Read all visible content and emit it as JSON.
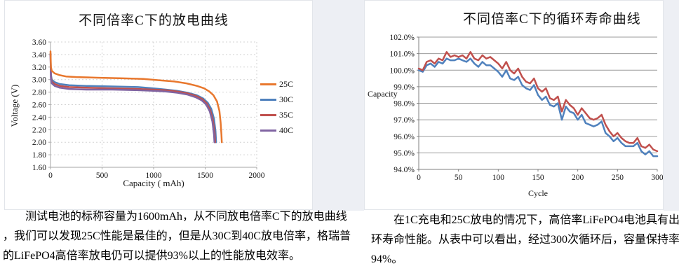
{
  "page": {
    "background": "#ffffff",
    "gutter_color": "#edeff4"
  },
  "left_text": {
    "lines": [
      "测试电池的标称容量为1600mAh，从不同放电倍率C下的放电曲线",
      "，我们可以发现25C性能是最佳的，但是从30C到40C放电倍率，格瑞普",
      "的LiFePO4高倍率放电仍可以提供93%以上的性能放电效率。"
    ]
  },
  "right_text": {
    "lines": [
      "在1C充电和25C放电的情况下，高倍率LiFePO4电池具有出色的循",
      "环寿命性能。从表中可以看出，经过300次循环后，容量保持率超过",
      "94%。"
    ]
  },
  "chart_data": [
    {
      "type": "line",
      "title": "不同倍率C下的放电曲线",
      "xlabel": "Capacity ( mAh)",
      "ylabel": "Voltage (V)",
      "xlim": [
        0,
        2000
      ],
      "ylim": [
        1.6,
        3.6
      ],
      "x_ticks": [
        0,
        500,
        1000,
        1500,
        2000
      ],
      "x_tick_labels": [
        "0",
        "500",
        "1000",
        "1500",
        "2000"
      ],
      "y_ticks": [
        1.6,
        1.8,
        2.0,
        2.2,
        2.4,
        2.6,
        2.8,
        3.0,
        3.2,
        3.4,
        3.6
      ],
      "y_tick_labels": [
        "1.60",
        "1.80",
        "2.00",
        "2.20",
        "2.40",
        "2.60",
        "2.80",
        "3.00",
        "3.20",
        "3.40",
        "3.60"
      ],
      "grid": "dashed",
      "grid_color": "#d3d3d3",
      "axis_color": "#a6a6a6",
      "legend_position": "right",
      "series": [
        {
          "name": "30C",
          "color": "#4F81BD",
          "points": [
            [
              0,
              3.42
            ],
            [
              4,
              3.08
            ],
            [
              12,
              3.0
            ],
            [
              40,
              2.96
            ],
            [
              90,
              2.93
            ],
            [
              180,
              2.91
            ],
            [
              350,
              2.9
            ],
            [
              600,
              2.89
            ],
            [
              850,
              2.88
            ],
            [
              1000,
              2.86
            ],
            [
              1120,
              2.84
            ],
            [
              1230,
              2.82
            ],
            [
              1330,
              2.79
            ],
            [
              1420,
              2.75
            ],
            [
              1480,
              2.7
            ],
            [
              1525,
              2.63
            ],
            [
              1560,
              2.53
            ],
            [
              1585,
              2.38
            ],
            [
              1600,
              2.18
            ],
            [
              1606,
              2.0
            ]
          ]
        },
        {
          "name": "35C",
          "color": "#C0504D",
          "points": [
            [
              0,
              3.41
            ],
            [
              4,
              3.04
            ],
            [
              12,
              2.97
            ],
            [
              40,
              2.93
            ],
            [
              90,
              2.9
            ],
            [
              180,
              2.88
            ],
            [
              350,
              2.87
            ],
            [
              600,
              2.86
            ],
            [
              850,
              2.85
            ],
            [
              1000,
              2.84
            ],
            [
              1120,
              2.83
            ],
            [
              1230,
              2.81
            ],
            [
              1330,
              2.78
            ],
            [
              1410,
              2.74
            ],
            [
              1470,
              2.69
            ],
            [
              1515,
              2.62
            ],
            [
              1550,
              2.51
            ],
            [
              1575,
              2.36
            ],
            [
              1592,
              2.15
            ],
            [
              1597,
              2.0
            ]
          ]
        },
        {
          "name": "40C",
          "color": "#8064A2",
          "points": [
            [
              0,
              3.4
            ],
            [
              4,
              3.01
            ],
            [
              12,
              2.94
            ],
            [
              40,
              2.9
            ],
            [
              90,
              2.87
            ],
            [
              180,
              2.85
            ],
            [
              350,
              2.84
            ],
            [
              600,
              2.84
            ],
            [
              850,
              2.83
            ],
            [
              1000,
              2.82
            ],
            [
              1120,
              2.81
            ],
            [
              1230,
              2.79
            ],
            [
              1330,
              2.76
            ],
            [
              1405,
              2.72
            ],
            [
              1465,
              2.67
            ],
            [
              1510,
              2.6
            ],
            [
              1545,
              2.49
            ],
            [
              1570,
              2.33
            ],
            [
              1586,
              2.12
            ],
            [
              1590,
              2.0
            ]
          ]
        },
        {
          "name": "25C",
          "color": "#E8772D",
          "points": [
            [
              0,
              3.45
            ],
            [
              4,
              3.2
            ],
            [
              12,
              3.14
            ],
            [
              40,
              3.1
            ],
            [
              90,
              3.07
            ],
            [
              150,
              3.05
            ],
            [
              250,
              3.04
            ],
            [
              450,
              3.03
            ],
            [
              700,
              3.02
            ],
            [
              900,
              3.01
            ],
            [
              1050,
              2.99
            ],
            [
              1200,
              2.97
            ],
            [
              1320,
              2.94
            ],
            [
              1420,
              2.9
            ],
            [
              1490,
              2.86
            ],
            [
              1540,
              2.81
            ],
            [
              1580,
              2.75
            ],
            [
              1615,
              2.65
            ],
            [
              1638,
              2.5
            ],
            [
              1650,
              2.32
            ],
            [
              1658,
              2.12
            ],
            [
              1661,
              2.0
            ]
          ]
        }
      ],
      "legend_order": [
        "25C",
        "30C",
        "35C",
        "40C"
      ]
    },
    {
      "type": "line",
      "title": "不同倍率C下的循环寿命曲线",
      "xlabel": "Cycle",
      "ylabel": "Capacity",
      "xlim": [
        0,
        300
      ],
      "ylim": [
        94,
        102
      ],
      "x_ticks": [
        0,
        50,
        100,
        150,
        200,
        250,
        300
      ],
      "x_tick_labels": [
        "0",
        "50",
        "100",
        "150",
        "200",
        "250",
        "300"
      ],
      "y_ticks": [
        94,
        95,
        96,
        97,
        98,
        99,
        100,
        101,
        102
      ],
      "y_tick_labels": [
        "94.0%",
        "95.0%",
        "96.0%",
        "97.0%",
        "98.0%",
        "99.0%",
        "100.0%",
        "101.0%",
        "102.0%"
      ],
      "grid": "solid",
      "grid_color": "#9b9b9b",
      "axis_color": "#7f7f7f",
      "legend_position": "none",
      "x_start": 0,
      "x_step": 5,
      "series": [
        {
          "name": "blue",
          "color": "#4F81BD",
          "values": [
            100.0,
            99.9,
            100.3,
            100.4,
            100.2,
            100.5,
            100.4,
            100.7,
            100.6,
            100.6,
            100.7,
            100.6,
            100.5,
            100.7,
            100.4,
            100.2,
            100.5,
            100.3,
            100.3,
            100.1,
            99.9,
            99.6,
            100.0,
            99.5,
            99.4,
            99.6,
            99.1,
            98.9,
            98.8,
            99.1,
            98.5,
            98.2,
            98.4,
            97.9,
            97.8,
            98.0,
            97.0,
            97.8,
            97.5,
            97.4,
            97.0,
            97.3,
            96.8,
            96.7,
            96.6,
            96.7,
            96.9,
            96.2,
            96.0,
            95.7,
            95.9,
            95.6,
            95.4,
            95.4,
            95.4,
            95.6,
            95.1,
            94.9,
            95.1,
            94.8,
            94.8
          ]
        },
        {
          "name": "red",
          "color": "#C0504D",
          "values": [
            100.1,
            100.0,
            100.5,
            100.6,
            100.4,
            100.7,
            100.6,
            101.1,
            100.8,
            100.9,
            100.8,
            100.9,
            100.7,
            101.1,
            100.7,
            100.6,
            100.9,
            100.7,
            100.8,
            100.6,
            100.4,
            100.1,
            100.5,
            100.0,
            99.8,
            100.1,
            99.6,
            99.3,
            99.2,
            99.5,
            98.9,
            98.7,
            98.9,
            98.3,
            98.2,
            98.4,
            97.5,
            98.2,
            97.9,
            97.7,
            97.3,
            97.7,
            97.4,
            97.1,
            97.0,
            97.1,
            97.3,
            96.7,
            96.3,
            96.0,
            96.2,
            95.9,
            95.7,
            95.6,
            95.6,
            95.9,
            95.4,
            95.3,
            95.5,
            95.2,
            95.1
          ]
        }
      ]
    }
  ]
}
